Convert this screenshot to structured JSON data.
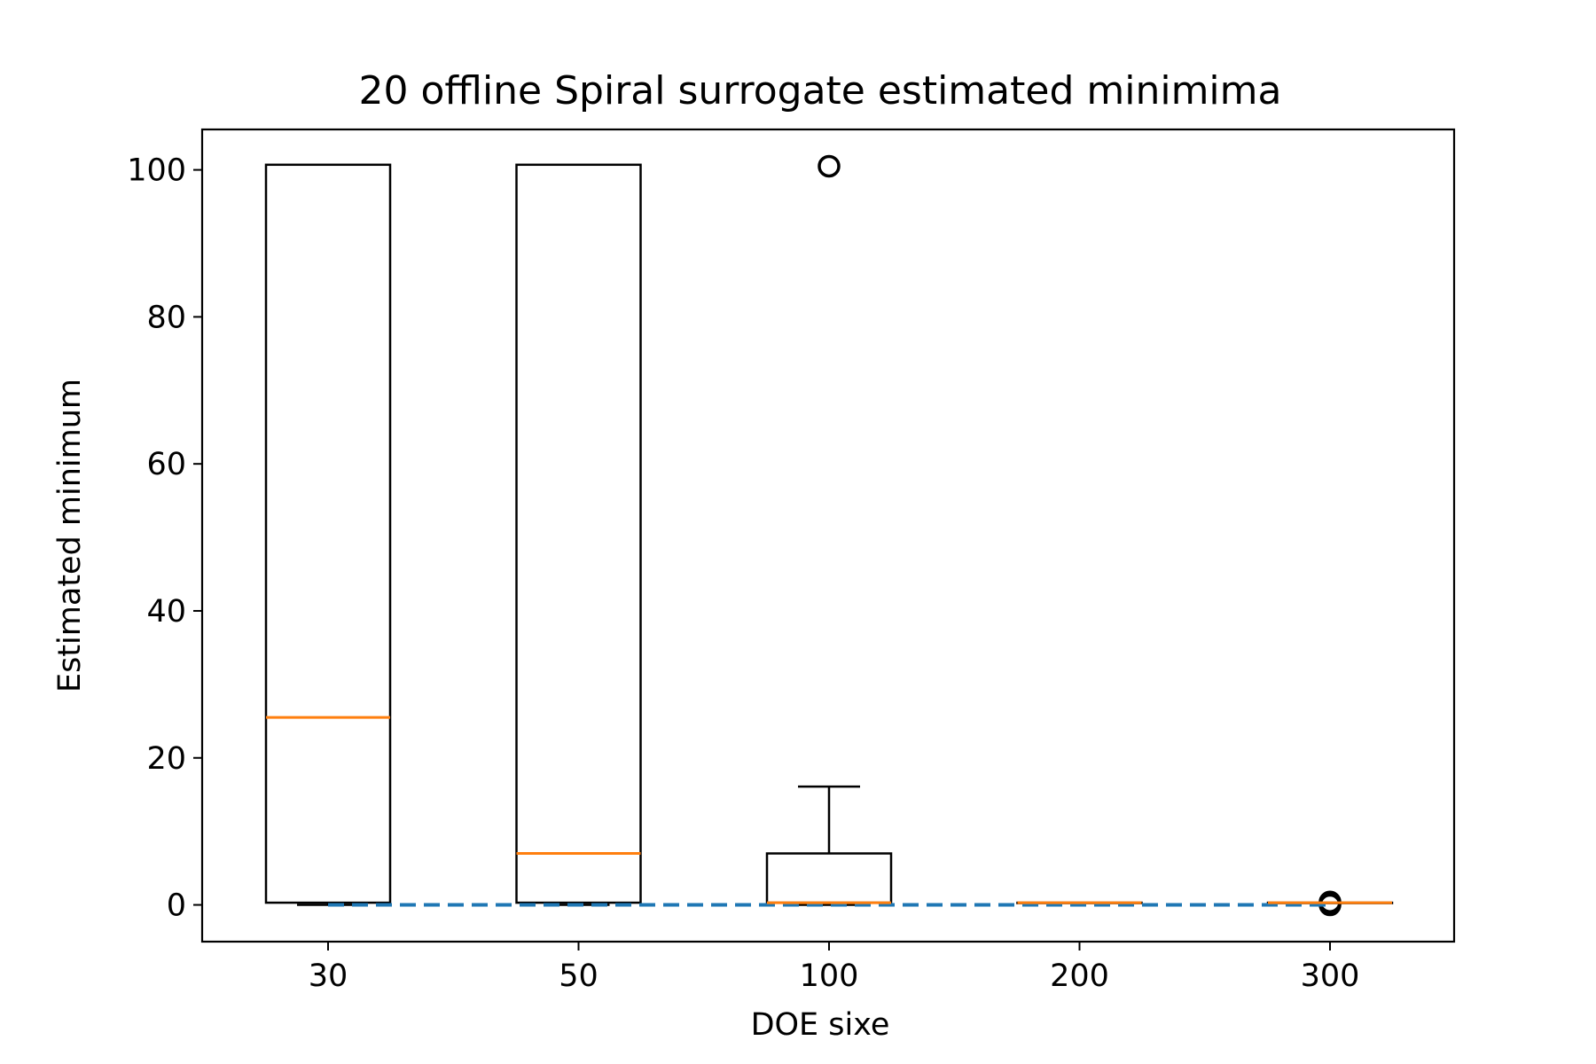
{
  "chart_data": {
    "type": "box",
    "title": "20 offline Spiral surrogate estimated minimima",
    "xlabel": "DOE sixe",
    "ylabel": "Estimated minimum",
    "categories": [
      "30",
      "50",
      "100",
      "200",
      "300"
    ],
    "ylim": [
      -5,
      105.5
    ],
    "yticks": [
      0,
      20,
      40,
      60,
      80,
      100
    ],
    "grid": false,
    "boxes": [
      {
        "category": "30",
        "whisker_low": 0.0,
        "q1": 0.3,
        "median": 25.5,
        "q3": 100.7,
        "whisker_high": 100.7,
        "outliers": []
      },
      {
        "category": "50",
        "whisker_low": 0.0,
        "q1": 0.3,
        "median": 7.0,
        "q3": 100.7,
        "whisker_high": 100.7,
        "outliers": []
      },
      {
        "category": "100",
        "whisker_low": 0.0,
        "q1": 0.3,
        "median": 0.3,
        "q3": 7.0,
        "whisker_high": 16.1,
        "outliers": [
          100.5
        ]
      },
      {
        "category": "200",
        "whisker_low": 0.3,
        "q1": 0.3,
        "median": 0.3,
        "q3": 0.3,
        "whisker_high": 0.3,
        "outliers": []
      },
      {
        "category": "300",
        "whisker_low": 0.3,
        "q1": 0.3,
        "median": 0.3,
        "q3": 0.3,
        "whisker_high": 0.3,
        "outliers": [
          0.0,
          0.2,
          0.4
        ]
      }
    ],
    "reference_line": {
      "y": 0.0,
      "style": "dashed",
      "color": "#1f77b4"
    },
    "colors": {
      "box": "#000000",
      "median": "#ff7f0e",
      "reference": "#1f77b4"
    }
  }
}
